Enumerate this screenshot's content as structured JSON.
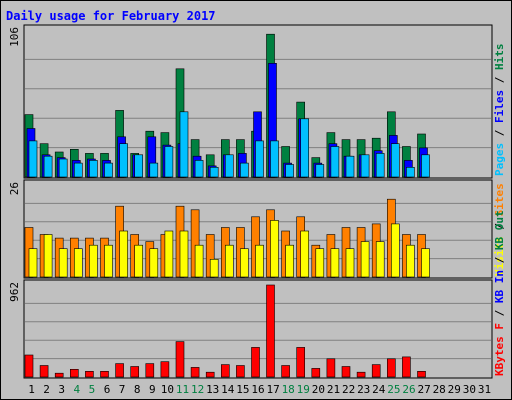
{
  "chart_data": {
    "type": "bar",
    "title": "Daily usage for February 2017",
    "categories": [
      "1",
      "2",
      "3",
      "4",
      "5",
      "6",
      "7",
      "8",
      "9",
      "10",
      "11",
      "12",
      "13",
      "14",
      "15",
      "16",
      "17",
      "18",
      "19",
      "20",
      "21",
      "22",
      "23",
      "24",
      "25",
      "26",
      "27",
      "28",
      "29",
      "30",
      "31"
    ],
    "weekend_days": [
      "4",
      "5",
      "11",
      "12",
      "18",
      "19",
      "25",
      "26"
    ],
    "panels": [
      {
        "id": "pages-files-hits",
        "ymax_label": "106",
        "ymax": 106,
        "legend": [
          {
            "name": "Pages",
            "color": "#00c0ff"
          },
          {
            "name": "Files",
            "color": "#0000ff"
          },
          {
            "name": "Hits",
            "color": "#008040"
          }
        ],
        "series": [
          {
            "name": "Hits",
            "values": [
              45,
              24,
              18,
              20,
              17,
              17,
              48,
              17,
              33,
              32,
              78,
              27,
              16,
              27,
              27,
              33,
              103,
              22,
              54,
              14,
              32,
              27,
              27,
              28,
              47,
              22,
              31,
              null,
              null,
              null,
              null
            ]
          },
          {
            "name": "Files",
            "values": [
              35,
              16,
              14,
              12,
              13,
              12,
              29,
              16,
              29,
              23,
              24,
              15,
              8,
              16,
              17,
              47,
              82,
              10,
              42,
              10,
              24,
              15,
              16,
              19,
              30,
              12,
              21,
              null,
              null,
              null,
              null
            ]
          },
          {
            "name": "Pages",
            "values": [
              26,
              15,
              13,
              10,
              12,
              10,
              24,
              16,
              10,
              22,
              47,
              12,
              7,
              16,
              10,
              26,
              26,
              9,
              42,
              9,
              22,
              15,
              16,
              17,
              24,
              7,
              16,
              null,
              null,
              null,
              null
            ]
          }
        ]
      },
      {
        "id": "visits-sites",
        "ymax_label": "26",
        "ymax": 26,
        "legend": [
          {
            "name": "Visits",
            "color": "#ffff00"
          },
          {
            "name": "Sites",
            "color": "#ff8000"
          }
        ],
        "series": [
          {
            "name": "Sites",
            "values": [
              14,
              12,
              11,
              11,
              11,
              11,
              20,
              12,
              10,
              12,
              20,
              19,
              12,
              14,
              14,
              17,
              19,
              13,
              17,
              9,
              12,
              14,
              14,
              15,
              22,
              12,
              12,
              null,
              null,
              null,
              null
            ]
          },
          {
            "name": "Visits",
            "values": [
              8,
              12,
              8,
              8,
              9,
              9,
              13,
              9,
              8,
              13,
              13,
              9,
              5,
              9,
              8,
              9,
              16,
              9,
              13,
              8,
              8,
              8,
              10,
              10,
              15,
              9,
              8,
              null,
              null,
              null,
              null
            ]
          }
        ]
      },
      {
        "id": "kbytes",
        "ymax_label": "962",
        "ymax": 962,
        "legend": [
          {
            "name": "KBytes F",
            "color": "#ff0000"
          },
          {
            "name": "KB In",
            "color": "#0000ff"
          },
          {
            "name": "KB Out",
            "color": "#008040"
          }
        ],
        "series": [
          {
            "name": "KBytes F",
            "values": [
              230,
              120,
              40,
              80,
              60,
              60,
              140,
              110,
              140,
              160,
              370,
              100,
              50,
              130,
              120,
              310,
              962,
              120,
              310,
              90,
              190,
              110,
              50,
              130,
              190,
              210,
              60,
              null,
              null,
              null,
              null
            ]
          }
        ]
      }
    ],
    "grid": true
  }
}
